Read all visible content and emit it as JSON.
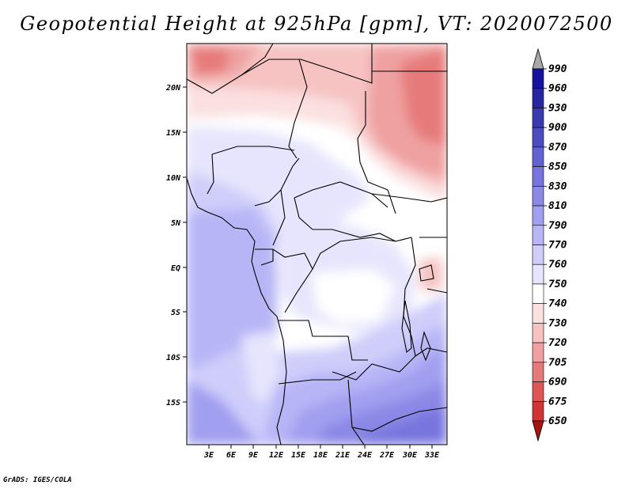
{
  "title": "Geopotential Height at 925hPa [gpm], VT: 2020072500",
  "credit": "GrADS: IGES/COLA",
  "map": {
    "lon_range": [
      0,
      35
    ],
    "lat_range": [
      -20,
      25
    ],
    "lat_ticks": [
      "20N",
      "15N",
      "10N",
      "5N",
      "EQ",
      "5S",
      "10S",
      "15S"
    ],
    "lon_ticks": [
      "3E",
      "6E",
      "9E",
      "12E",
      "15E",
      "18E",
      "21E",
      "24E",
      "27E",
      "30E",
      "33E"
    ]
  },
  "colorbar": {
    "labels": [
      "990",
      "960",
      "930",
      "900",
      "870",
      "850",
      "830",
      "810",
      "790",
      "770",
      "760",
      "750",
      "740",
      "730",
      "720",
      "705",
      "690",
      "675",
      "650"
    ],
    "colors": [
      "#16139e",
      "#27259f",
      "#3b39b0",
      "#4d4bc0",
      "#6461d2",
      "#7774de",
      "#8b88e6",
      "#a19ff0",
      "#b7b5f6",
      "#cfcdfa",
      "#e6e5fd",
      "#ffffff",
      "#fbe0e0",
      "#f6c2c2",
      "#efa0a0",
      "#e67a7a",
      "#dd5555",
      "#d23535",
      "#c21f1f",
      "#ab1313"
    ]
  }
}
